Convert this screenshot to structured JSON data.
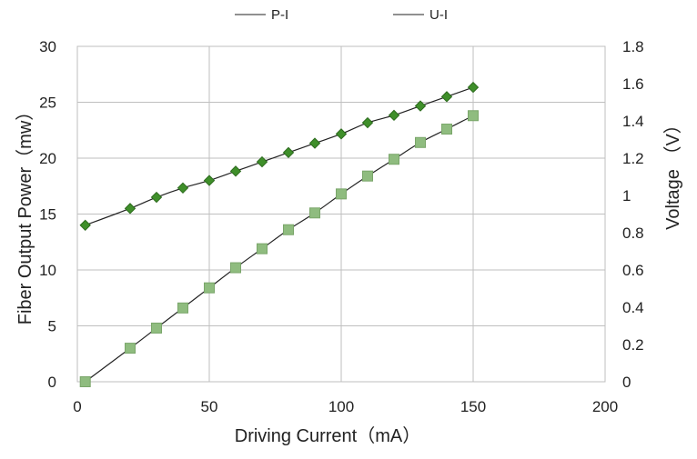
{
  "chart_data": {
    "type": "line",
    "x_axis": {
      "label": "Driving Current（mA）",
      "min": 0,
      "max": 200,
      "ticks": [
        0,
        50,
        100,
        150,
        200
      ]
    },
    "y_left": {
      "label": "Fiber Output Power（mw）",
      "min": 0,
      "max": 30,
      "ticks": [
        0,
        5,
        10,
        15,
        20,
        25,
        30
      ]
    },
    "y_right": {
      "label": "Voltage （V）",
      "min": 0,
      "max": 1.8,
      "ticks": [
        "0",
        "0.2",
        "0.4",
        "0.6",
        "0.8",
        "1",
        "1.2",
        "1.4",
        "1.6",
        "1.8"
      ]
    },
    "grid": true,
    "legend_position": "top-center",
    "series": [
      {
        "name": "P-I",
        "axis": "left",
        "marker": "square",
        "color": "#8fbc7f",
        "marker_edge": "#7aa66a",
        "line_color": "#222222",
        "x": [
          3,
          20,
          30,
          40,
          50,
          60,
          70,
          80,
          90,
          100,
          110,
          120,
          130,
          140,
          150
        ],
        "y": [
          0,
          3.0,
          4.8,
          6.6,
          8.4,
          10.2,
          11.9,
          13.6,
          15.1,
          16.8,
          18.4,
          19.9,
          21.4,
          22.6,
          23.8
        ]
      },
      {
        "name": "U-I",
        "axis": "right",
        "marker": "diamond",
        "color": "#3f8f2a",
        "marker_edge": "#2d6b1e",
        "line_color": "#222222",
        "x": [
          3,
          20,
          30,
          40,
          50,
          60,
          70,
          80,
          90,
          100,
          110,
          120,
          130,
          140,
          150
        ],
        "y": [
          0.84,
          0.93,
          0.99,
          1.04,
          1.08,
          1.13,
          1.18,
          1.23,
          1.28,
          1.33,
          1.39,
          1.43,
          1.48,
          1.53,
          1.58
        ]
      }
    ]
  }
}
